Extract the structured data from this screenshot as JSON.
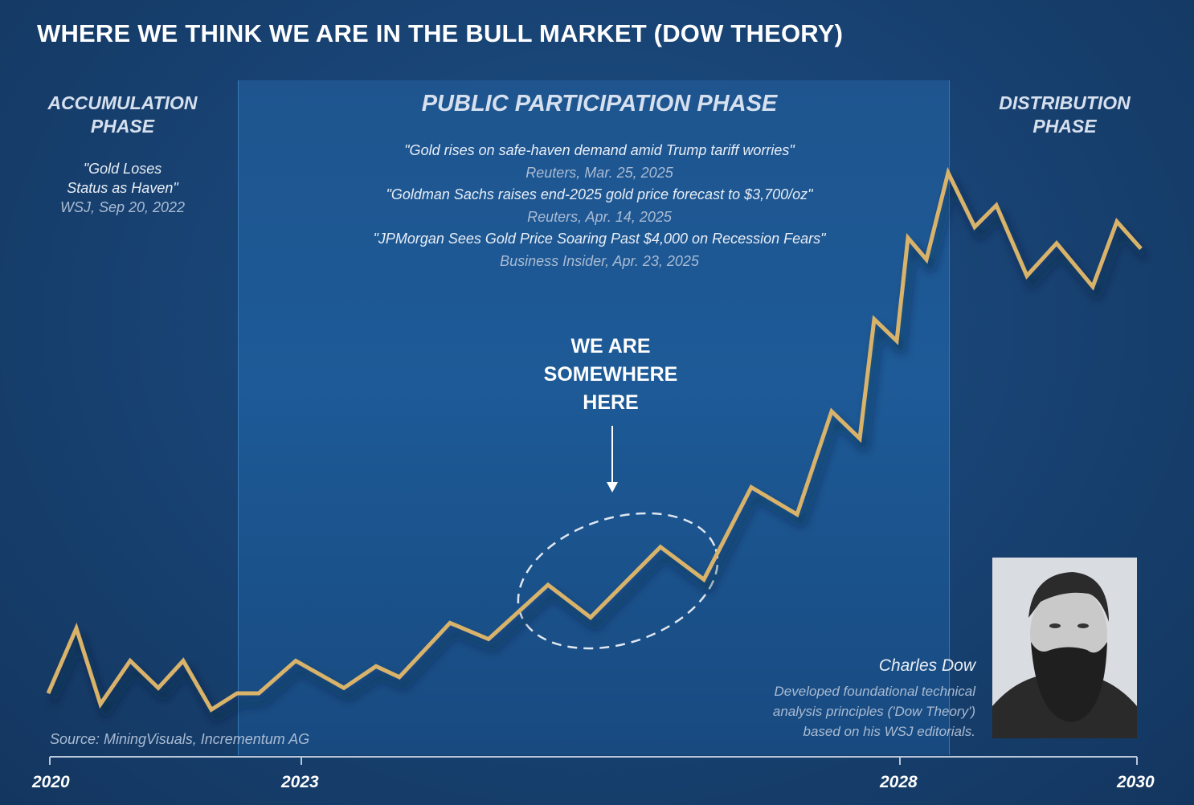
{
  "title": "WHERE WE THINK WE ARE IN THE BULL MARKET (DOW THEORY)",
  "phases": {
    "accumulation": {
      "label_line1": "ACCUMULATION",
      "label_line2": "PHASE",
      "quote_line1": "\"Gold Loses",
      "quote_line2": "Status as Haven\"",
      "source": "WSJ, Sep 20, 2022"
    },
    "public": {
      "label": "PUBLIC PARTICIPATION PHASE",
      "quotes": [
        {
          "text": "\"Gold rises on safe-haven demand amid Trump tariff worries\"",
          "source": "Reuters, Mar. 25, 2025"
        },
        {
          "text": "\"Goldman Sachs raises end-2025 gold price forecast to $3,700/oz\"",
          "source": "Reuters, Apr. 14, 2025"
        },
        {
          "text": "\"JPMorgan Sees Gold Price Soaring Past $4,000 on Recession Fears\"",
          "source": "Business Insider, Apr. 23, 2025"
        }
      ]
    },
    "distribution": {
      "label_line1": "DISTRIBUTION",
      "label_line2": "PHASE"
    }
  },
  "annotation": {
    "line1": "WE ARE",
    "line2": "SOMEWHERE",
    "line3": "HERE"
  },
  "source": "Source: MiningVisuals, Incrementum AG",
  "charles_dow": {
    "name": "Charles Dow",
    "desc_line1": "Developed foundational technical",
    "desc_line2": "analysis principles ('Dow Theory')",
    "desc_line3": "based on his WSJ editorials."
  },
  "colors": {
    "background": "#17406f",
    "line": "#d9b36a",
    "panel": "#1d5a97"
  },
  "chart_data": {
    "type": "line",
    "title": "WHERE WE THINK WE ARE IN THE BULL MARKET (DOW THEORY)",
    "x_ticks": [
      "2020",
      "2023",
      "2028",
      "2030"
    ],
    "values": [
      4,
      16,
      2,
      10,
      5,
      10,
      1,
      4,
      4,
      10,
      5,
      9,
      7,
      17,
      14,
      24,
      18,
      31,
      25,
      42,
      37,
      56,
      51,
      73,
      69,
      88,
      84,
      100,
      90,
      94,
      81,
      87,
      79,
      91,
      86
    ],
    "grid": false
  }
}
